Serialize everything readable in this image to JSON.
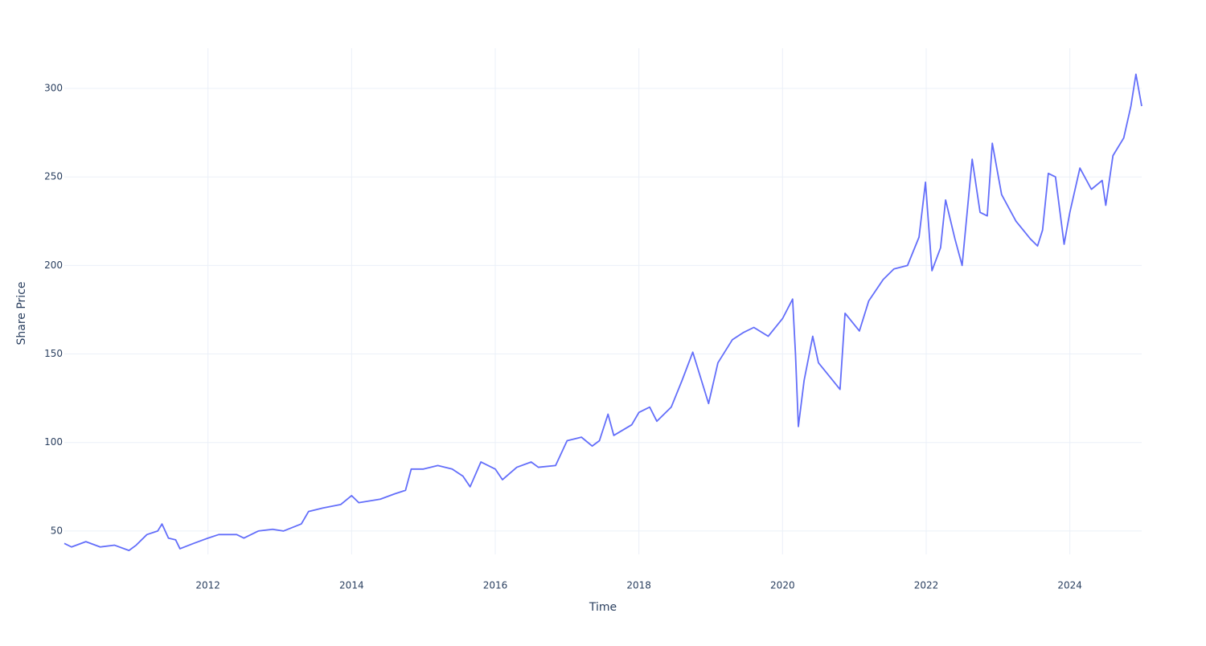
{
  "chart_data": {
    "type": "line",
    "x_label": "Time",
    "y_label": "Share Price",
    "grid": true,
    "xlim": [
      2010.0,
      2025.0
    ],
    "xticks": [
      2012,
      2014,
      2016,
      2018,
      2020,
      2022,
      2024
    ],
    "ylim": [
      36.8,
      322.7
    ],
    "yticks": [
      50,
      100,
      150,
      200,
      250,
      300
    ],
    "series": [
      {
        "color": "#636efa",
        "x": [
          2010.0,
          2010.1,
          2010.3,
          2010.5,
          2010.7,
          2010.9,
          2011.0,
          2011.15,
          2011.3,
          2011.36,
          2011.45,
          2011.55,
          2011.61,
          2011.8,
          2012.0,
          2012.15,
          2012.4,
          2012.5,
          2012.7,
          2012.9,
          2013.05,
          2013.3,
          2013.4,
          2013.6,
          2013.85,
          2014.0,
          2014.1,
          2014.4,
          2014.6,
          2014.75,
          2014.83,
          2015.0,
          2015.2,
          2015.4,
          2015.55,
          2015.65,
          2015.8,
          2016.0,
          2016.1,
          2016.3,
          2016.5,
          2016.6,
          2016.84,
          2017.0,
          2017.2,
          2017.35,
          2017.45,
          2017.57,
          2017.65,
          2017.9,
          2018.0,
          2018.15,
          2018.25,
          2018.45,
          2018.6,
          2018.75,
          2018.97,
          2019.1,
          2019.3,
          2019.45,
          2019.6,
          2019.8,
          2020.0,
          2020.14,
          2020.18,
          2020.22,
          2020.3,
          2020.42,
          2020.5,
          2020.7,
          2020.8,
          2020.87,
          2021.07,
          2021.2,
          2021.4,
          2021.55,
          2021.74,
          2021.9,
          2021.99,
          2022.08,
          2022.2,
          2022.27,
          2022.4,
          2022.5,
          2022.64,
          2022.75,
          2022.85,
          2022.92,
          2023.05,
          2023.25,
          2023.45,
          2023.55,
          2023.62,
          2023.7,
          2023.8,
          2023.92,
          2024.0,
          2024.14,
          2024.3,
          2024.45,
          2024.5,
          2024.6,
          2024.75,
          2024.85,
          2024.92,
          2025.0
        ],
        "values": [
          43,
          41,
          44,
          41,
          42,
          39,
          42,
          48,
          50,
          54,
          46,
          45,
          40,
          43,
          46,
          48,
          48,
          46,
          50,
          51,
          50,
          54,
          61,
          63,
          65,
          70,
          66,
          68,
          71,
          73,
          85,
          85,
          87,
          85,
          81,
          75,
          89,
          85,
          79,
          86,
          89,
          86,
          87,
          101,
          103,
          98,
          101,
          116,
          104,
          110,
          117,
          120,
          112,
          120,
          135,
          151,
          122,
          145,
          158,
          162,
          165,
          160,
          170,
          181,
          150,
          109,
          135,
          160,
          145,
          135,
          130,
          173,
          163,
          180,
          192,
          198,
          200,
          216,
          247,
          197,
          210,
          237,
          215,
          200,
          260,
          230,
          228,
          269,
          240,
          225,
          215,
          211,
          220,
          252,
          250,
          212,
          230,
          255,
          243,
          248,
          234,
          262,
          272,
          290,
          308,
          290
        ]
      }
    ]
  }
}
